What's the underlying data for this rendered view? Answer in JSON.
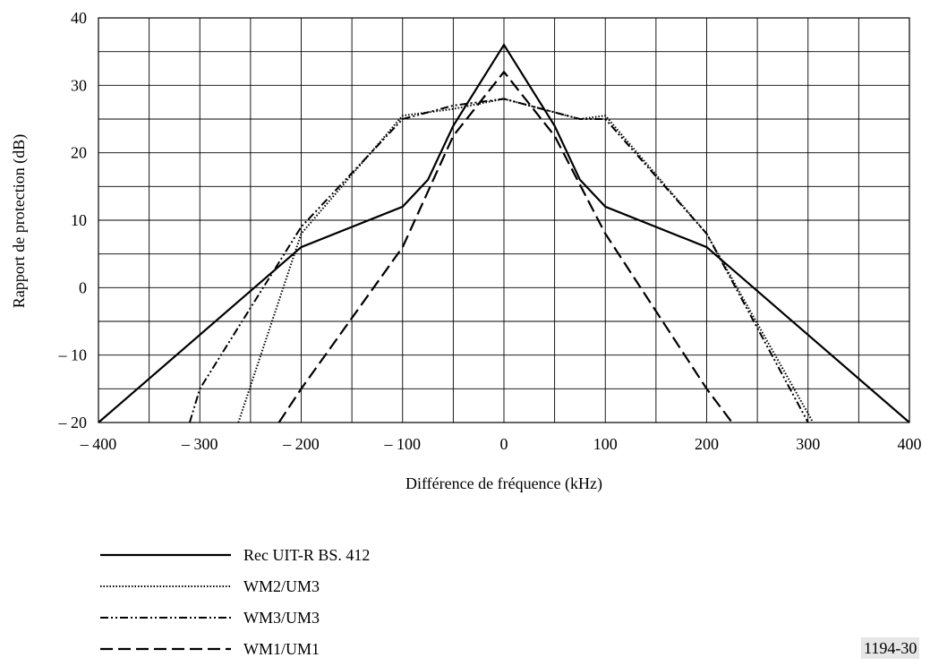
{
  "figure_id": "1194-30",
  "chart_data": {
    "type": "line",
    "title": "",
    "xlabel": "Différence de fréquence (kHz)",
    "ylabel": "Rapport de protection (dB)",
    "xlim": [
      -400,
      400
    ],
    "ylim": [
      -20,
      40
    ],
    "x_ticks": [
      -400,
      -300,
      -200,
      -100,
      0,
      100,
      200,
      300,
      400
    ],
    "x_tick_labels": [
      "– 400",
      "– 300",
      "– 200",
      "– 100",
      "0",
      "100",
      "200",
      "300",
      "400"
    ],
    "y_ticks": [
      -20,
      -10,
      0,
      10,
      20,
      30,
      40
    ],
    "y_tick_labels": [
      "– 20",
      "– 10",
      "0",
      "10",
      "20",
      "30",
      "40"
    ],
    "grid": true,
    "legend_position": "bottom",
    "series": [
      {
        "name": "Rec UIT-R BS. 412",
        "style": "solid",
        "points": [
          [
            -400,
            -20
          ],
          [
            -200,
            6
          ],
          [
            -100,
            12
          ],
          [
            -75,
            16
          ],
          [
            -50,
            24
          ],
          [
            0,
            36
          ],
          [
            50,
            24
          ],
          [
            75,
            16
          ],
          [
            100,
            12
          ],
          [
            200,
            6
          ],
          [
            400,
            -20
          ]
        ]
      },
      {
        "name": "WM2/UM3",
        "style": "dotted",
        "points": [
          [
            -262,
            -20
          ],
          [
            -200,
            8
          ],
          [
            -100,
            25.5
          ],
          [
            -75,
            26
          ],
          [
            -50,
            26.5
          ],
          [
            0,
            28
          ],
          [
            50,
            26
          ],
          [
            75,
            25
          ],
          [
            100,
            25.5
          ],
          [
            200,
            8
          ],
          [
            305,
            -20
          ]
        ]
      },
      {
        "name": "WM3/UM3",
        "style": "dashdotdot",
        "points": [
          [
            -310,
            -20
          ],
          [
            -300,
            -15
          ],
          [
            -200,
            9
          ],
          [
            -100,
            25
          ],
          [
            -75,
            26
          ],
          [
            -50,
            27
          ],
          [
            0,
            28
          ],
          [
            50,
            26
          ],
          [
            75,
            25
          ],
          [
            100,
            25
          ],
          [
            200,
            8
          ],
          [
            300,
            -20
          ]
        ]
      },
      {
        "name": "WM1/UM1",
        "style": "dashed",
        "points": [
          [
            -222,
            -20
          ],
          [
            -200,
            -15
          ],
          [
            -100,
            6
          ],
          [
            -50,
            22.5
          ],
          [
            0,
            32
          ],
          [
            50,
            22.5
          ],
          [
            100,
            8
          ],
          [
            200,
            -15
          ],
          [
            225,
            -20
          ]
        ]
      }
    ]
  }
}
